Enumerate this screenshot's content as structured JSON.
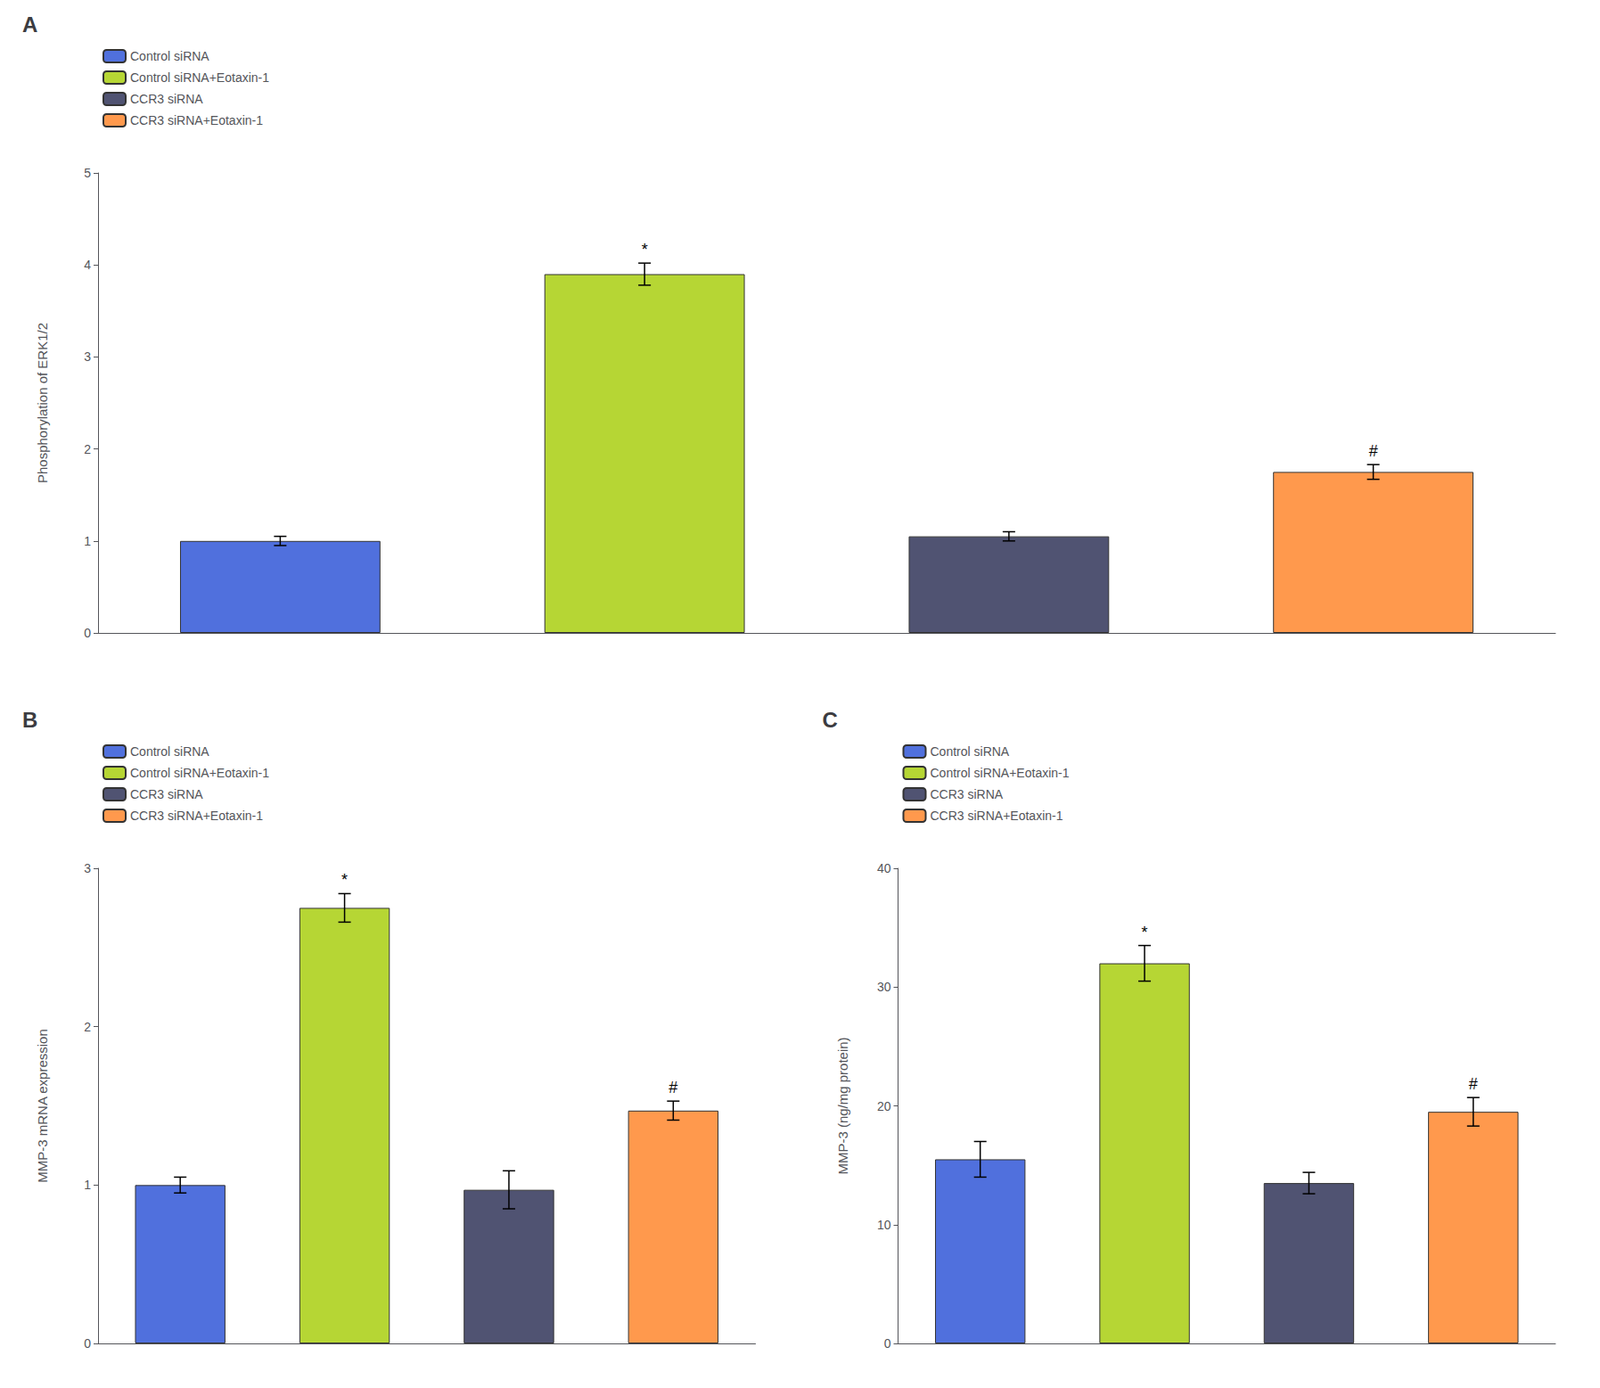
{
  "chart_data": [
    {
      "type": "bar",
      "title": "A",
      "categories": [
        null,
        null,
        null,
        null
      ],
      "series": [
        {
          "name": "Control siRNA",
          "values": [
            1.0,
            null,
            null,
            null
          ],
          "errors": [
            0.05,
            null,
            null,
            null
          ]
        },
        {
          "name": "Control siRNA+Eotaxin-1",
          "values": [
            null,
            3.9,
            null,
            null
          ],
          "errors": [
            null,
            0.12,
            null,
            null
          ],
          "annotation": "*"
        },
        {
          "name": "CCR3 siRNA",
          "values": [
            null,
            null,
            1.05,
            null
          ],
          "errors": [
            null,
            null,
            0.05,
            null
          ]
        },
        {
          "name": "CCR3 siRNA+Eotaxin-1",
          "values": [
            null,
            null,
            null,
            1.75
          ],
          "errors": [
            null,
            null,
            null,
            0.08
          ],
          "annotation": "#"
        }
      ],
      "ylabel": "Phosphorylation of ERK1/2",
      "ylim": [
        0,
        5
      ],
      "yticks": [
        0,
        1,
        2,
        3,
        4,
        5
      ],
      "grid": false,
      "legend": "upper left",
      "tick_labels": "y"
    },
    {
      "type": "bar",
      "title": "B",
      "categories": [
        null,
        null,
        null,
        null
      ],
      "series": [
        {
          "name": "Control siRNA",
          "values": [
            1.0,
            null,
            null,
            null
          ],
          "errors": [
            0.05,
            null,
            null,
            null
          ]
        },
        {
          "name": "Control siRNA+Eotaxin-1",
          "values": [
            null,
            2.75,
            null,
            null
          ],
          "errors": [
            null,
            0.09,
            null,
            null
          ],
          "annotation": "*"
        },
        {
          "name": "CCR3 siRNA",
          "values": [
            null,
            null,
            0.97,
            null
          ],
          "errors": [
            null,
            null,
            0.12,
            null
          ]
        },
        {
          "name": "CCR3 siRNA+Eotaxin-1",
          "values": [
            null,
            null,
            null,
            1.47
          ],
          "errors": [
            null,
            null,
            null,
            0.06
          ],
          "annotation": "#"
        }
      ],
      "ylabel": "MMP-3 mRNA expression",
      "ylim": [
        0,
        3
      ],
      "yticks": [
        0,
        1,
        2,
        3
      ],
      "grid": false,
      "legend": "upper left",
      "tick_labels": "y"
    },
    {
      "type": "bar",
      "title": "C",
      "categories": [
        null,
        null,
        null,
        null
      ],
      "series": [
        {
          "name": "Control siRNA",
          "values": [
            15.5,
            null,
            null,
            null
          ],
          "errors": [
            1.5,
            null,
            null,
            null
          ]
        },
        {
          "name": "Control siRNA+Eotaxin-1",
          "values": [
            null,
            32.0,
            null,
            null
          ],
          "errors": [
            null,
            1.5,
            null,
            null
          ],
          "annotation": "*"
        },
        {
          "name": "CCR3 siRNA",
          "values": [
            null,
            null,
            13.5,
            null
          ],
          "errors": [
            null,
            null,
            0.9,
            null
          ]
        },
        {
          "name": "CCR3 siRNA+Eotaxin-1",
          "values": [
            null,
            null,
            null,
            19.5
          ],
          "errors": [
            null,
            null,
            null,
            1.2
          ],
          "annotation": "#"
        }
      ],
      "ylabel": "MMP-3 (ng/mg protein)",
      "ylim": [
        0,
        40
      ],
      "yticks": [
        0,
        10,
        20,
        30,
        40
      ],
      "grid": false,
      "legend": "upper left",
      "tick_labels": "y"
    }
  ]
}
